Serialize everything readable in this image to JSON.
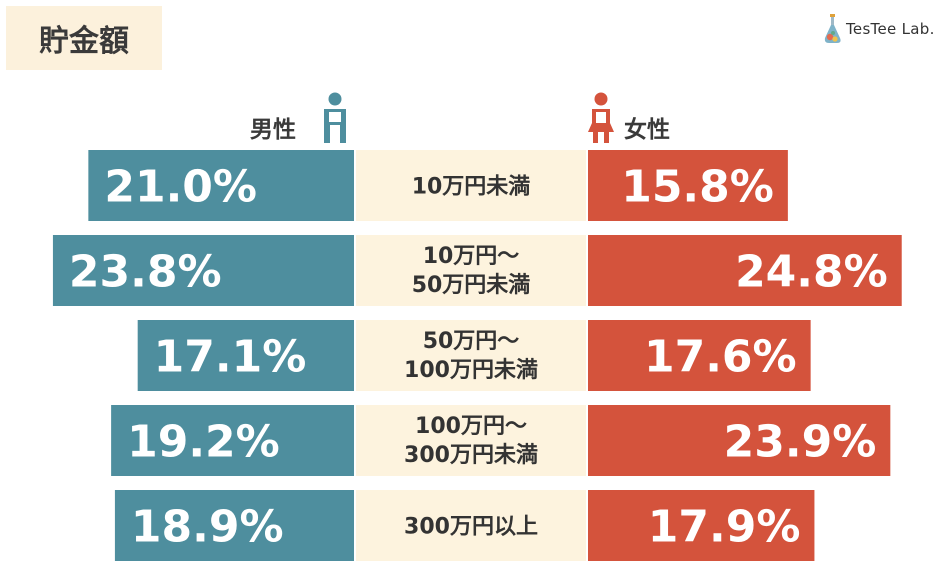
{
  "title": "貯金額",
  "logo": {
    "text": "TesTee Lab.",
    "icon": "flask-icon"
  },
  "legend": {
    "male": {
      "label": "男性",
      "color": "#4e8e9e",
      "icon": "male-person-icon"
    },
    "female": {
      "label": "女性",
      "color": "#d4533c",
      "icon": "female-person-icon"
    }
  },
  "chart_data": {
    "type": "bar",
    "orientation": "horizontal-back-to-back",
    "categories": [
      [
        "10万円未満"
      ],
      [
        "10万円～",
        "50万円未満"
      ],
      [
        "50万円～",
        "100万円未満"
      ],
      [
        "100万円～",
        "300万円未満"
      ],
      [
        "300万円以上"
      ]
    ],
    "series": [
      {
        "name": "男性",
        "values": [
          21.0,
          23.8,
          17.1,
          19.2,
          18.9
        ],
        "labels": [
          "21.0%",
          "23.8%",
          "17.1%",
          "19.2%",
          "18.9%"
        ],
        "color": "#4e8e9e"
      },
      {
        "name": "女性",
        "values": [
          15.8,
          24.8,
          17.6,
          23.9,
          17.9
        ],
        "labels": [
          "15.8%",
          "24.8%",
          "17.6%",
          "23.9%",
          "17.9%"
        ],
        "color": "#d4533c"
      }
    ],
    "center_color": "#fdf3de",
    "unit": "%"
  }
}
